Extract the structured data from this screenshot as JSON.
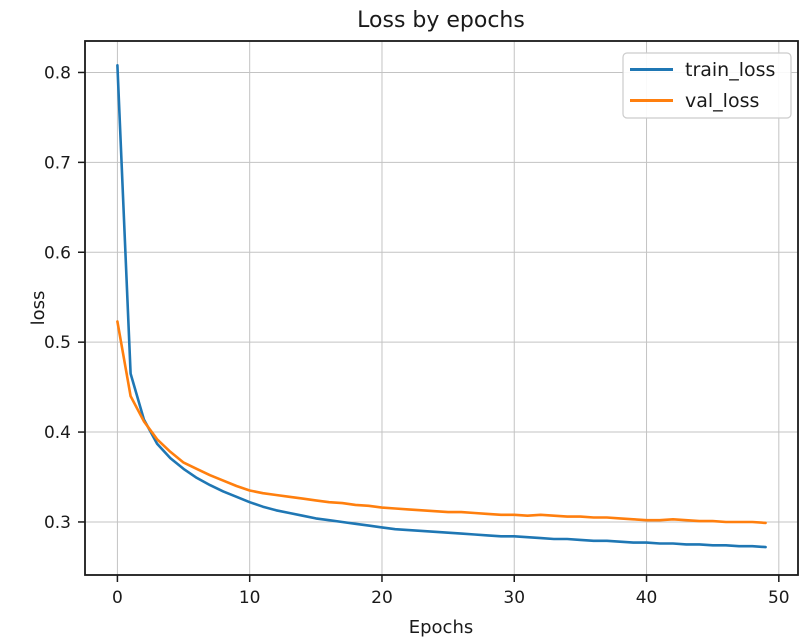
{
  "chart_data": {
    "type": "line",
    "title": "Loss by epochs",
    "xlabel": "Epochs",
    "ylabel": "loss",
    "x": [
      0,
      1,
      2,
      3,
      4,
      5,
      6,
      7,
      8,
      9,
      10,
      11,
      12,
      13,
      14,
      15,
      16,
      17,
      18,
      19,
      20,
      21,
      22,
      23,
      24,
      25,
      26,
      27,
      28,
      29,
      30,
      31,
      32,
      33,
      34,
      35,
      36,
      37,
      38,
      39,
      40,
      41,
      42,
      43,
      44,
      45,
      46,
      47,
      48,
      49
    ],
    "series": [
      {
        "name": "train_loss",
        "color": "#1f77b4",
        "values": [
          0.808,
          0.465,
          0.414,
          0.387,
          0.371,
          0.359,
          0.349,
          0.341,
          0.334,
          0.328,
          0.322,
          0.317,
          0.313,
          0.31,
          0.307,
          0.304,
          0.302,
          0.3,
          0.298,
          0.296,
          0.294,
          0.292,
          0.291,
          0.29,
          0.289,
          0.288,
          0.287,
          0.286,
          0.285,
          0.284,
          0.284,
          0.283,
          0.282,
          0.281,
          0.281,
          0.28,
          0.279,
          0.279,
          0.278,
          0.277,
          0.277,
          0.276,
          0.276,
          0.275,
          0.275,
          0.274,
          0.274,
          0.273,
          0.273,
          0.272
        ]
      },
      {
        "name": "val_loss",
        "color": "#ff7f0e",
        "values": [
          0.523,
          0.44,
          0.412,
          0.392,
          0.378,
          0.366,
          0.359,
          0.352,
          0.346,
          0.34,
          0.335,
          0.332,
          0.33,
          0.328,
          0.326,
          0.324,
          0.322,
          0.321,
          0.319,
          0.318,
          0.316,
          0.315,
          0.314,
          0.313,
          0.312,
          0.311,
          0.311,
          0.31,
          0.309,
          0.308,
          0.308,
          0.307,
          0.308,
          0.307,
          0.306,
          0.306,
          0.305,
          0.305,
          0.304,
          0.303,
          0.302,
          0.302,
          0.303,
          0.302,
          0.301,
          0.301,
          0.3,
          0.3,
          0.3,
          0.299
        ]
      }
    ],
    "xticks": [
      0,
      10,
      20,
      30,
      40,
      50
    ],
    "yticks": [
      0.3,
      0.4,
      0.5,
      0.6,
      0.7,
      0.8
    ],
    "xlim": [
      -2.45,
      51.45
    ],
    "ylim": [
      0.241,
      0.835
    ],
    "grid": true,
    "legend": {
      "position": "upper right",
      "entries": [
        "train_loss",
        "val_loss"
      ]
    }
  },
  "colors": {
    "grid": "#c3c3c3",
    "spine": "#1a1a1a",
    "text": "#1a1a1a",
    "legend_border": "#cccccc",
    "legend_fill": "#ffffff"
  }
}
